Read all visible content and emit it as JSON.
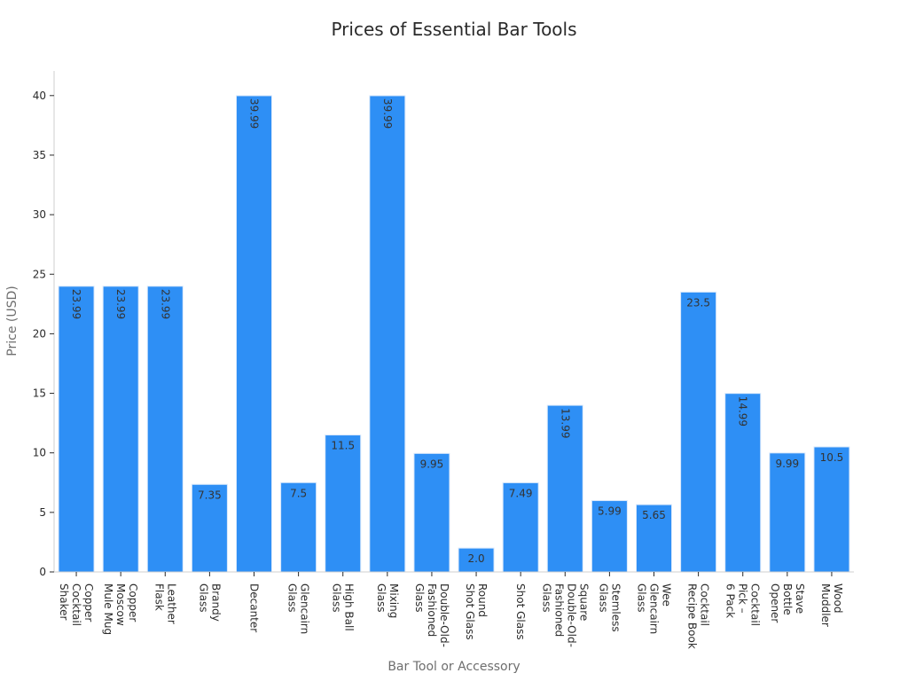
{
  "chart_data": {
    "type": "bar",
    "title": "Prices of Essential Bar Tools",
    "xlabel": "Bar Tool or Accessory",
    "ylabel": "Price (USD)",
    "ylim": [
      0,
      42
    ],
    "yticks": [
      0,
      5,
      10,
      15,
      20,
      25,
      30,
      35,
      40
    ],
    "grid": false,
    "bar_color": "#2e8ff5",
    "categories": [
      [
        "Copper",
        "Cocktail",
        "Shaker"
      ],
      [
        "Copper",
        "Moscow",
        "Mule Mug"
      ],
      [
        "Leather",
        "Flask"
      ],
      [
        "Brandy",
        "Glass"
      ],
      [
        "Decanter"
      ],
      [
        "Glencairn",
        "Glass"
      ],
      [
        "High Ball",
        "Glass"
      ],
      [
        "Mixing",
        "Glass"
      ],
      [
        "Double-Old-",
        "Fashioned",
        "Glass"
      ],
      [
        "Round",
        "Shot Glass"
      ],
      [
        "Shot Glass"
      ],
      [
        "Square",
        "Double-Old-",
        "Fashioned",
        "Glass"
      ],
      [
        "Stemless",
        "Glass"
      ],
      [
        "Wee",
        "Glencairn",
        "Glass"
      ],
      [
        "Cocktail",
        "Recipe Book"
      ],
      [
        "Cocktail",
        "Pick –",
        "6 Pack"
      ],
      [
        "Stave",
        "Bottle",
        "Opener"
      ],
      [
        "Wood",
        "Muddler"
      ]
    ],
    "values": [
      23.99,
      23.99,
      23.99,
      7.35,
      39.99,
      7.5,
      11.5,
      39.99,
      9.95,
      2.0,
      7.49,
      13.99,
      5.99,
      5.65,
      23.5,
      14.99,
      9.99,
      10.5
    ],
    "data_labels": [
      "23.99",
      "23.99",
      "23.99",
      "7.35",
      "39.99",
      "7.5",
      "11.5",
      "39.99",
      "9.95",
      "2.0",
      "7.49",
      "13.99",
      "5.99",
      "5.65",
      "23.5",
      "14.99",
      "9.99",
      "10.5"
    ]
  }
}
